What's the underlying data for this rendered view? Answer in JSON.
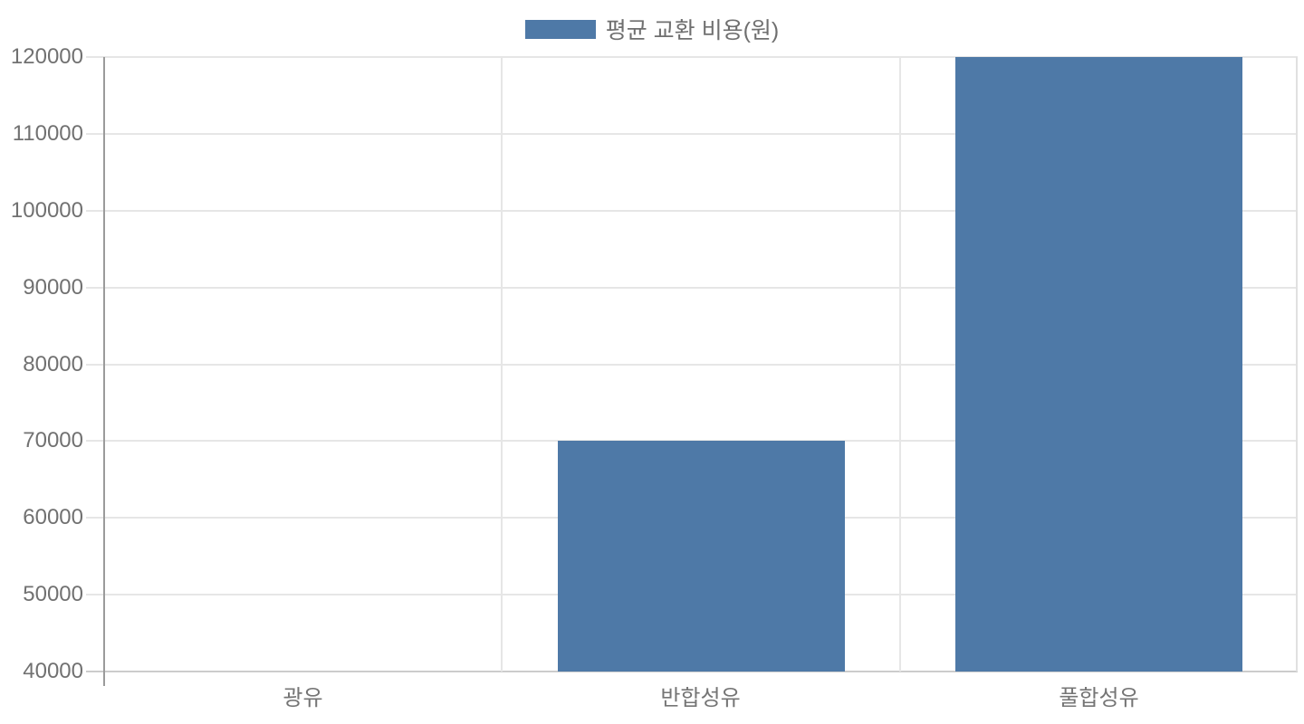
{
  "chart_data": {
    "type": "bar",
    "title": "",
    "legend": "평균 교환 비용(원)",
    "legend_position": "top-center",
    "categories": [
      "광유",
      "반합성유",
      "풀합성유"
    ],
    "values": [
      40000,
      70000,
      120000
    ],
    "ylim": [
      40000,
      120000
    ],
    "y_ticks": [
      40000,
      50000,
      60000,
      70000,
      80000,
      90000,
      100000,
      110000,
      120000
    ],
    "xlabel": "",
    "ylabel": "",
    "grid": "on"
  },
  "colors": {
    "bar": "#4e79a7",
    "gridline": "#e6e6e6",
    "plot_border": "#e0e0e0",
    "axis_line": "#9b9b9b",
    "baseline": "#cccccc",
    "tick_text": "#717171",
    "legend_text": "#6f6f6f",
    "background": "#ffffff"
  }
}
